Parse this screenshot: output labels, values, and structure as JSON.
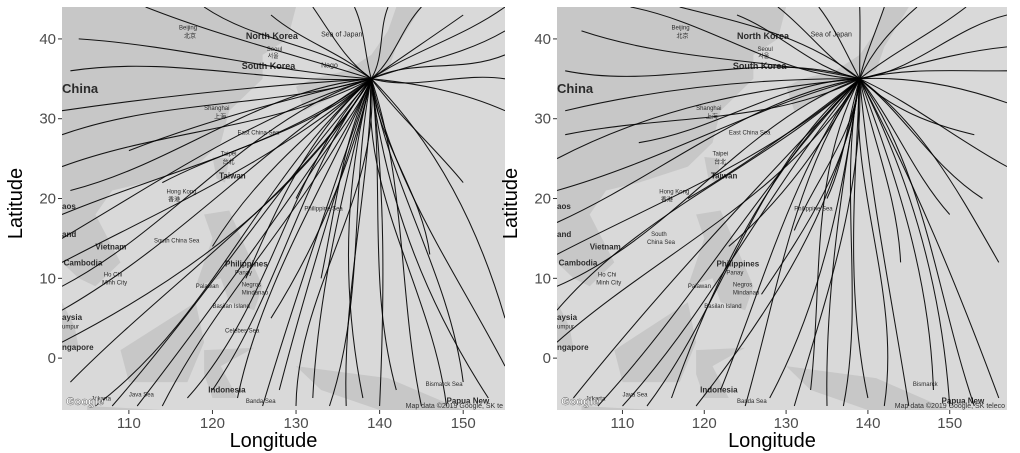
{
  "panels": [
    {
      "id": "left",
      "xlabel": "Longitude",
      "ylabel": "Latitude",
      "lon_range": [
        102,
        155
      ],
      "lat_range": [
        -6.5,
        44
      ],
      "x_ticks": [
        "110",
        "120",
        "130",
        "140",
        "150"
      ],
      "y_ticks": [
        "0",
        "10",
        "20",
        "30",
        "40"
      ],
      "origin": {
        "lon": 139,
        "lat": 35
      },
      "track_ends": [
        [
          103,
          -3
        ],
        [
          106,
          -6
        ],
        [
          108,
          -6
        ],
        [
          111,
          -6
        ],
        [
          114,
          -6
        ],
        [
          117,
          -5
        ],
        [
          120,
          -4
        ],
        [
          123,
          -5
        ],
        [
          126,
          -6
        ],
        [
          128,
          -4
        ],
        [
          130,
          -6
        ],
        [
          132,
          -5
        ],
        [
          134,
          -6
        ],
        [
          136,
          -6
        ],
        [
          138,
          -5
        ],
        [
          140,
          -6
        ],
        [
          142,
          -4
        ],
        [
          145,
          -6
        ],
        [
          148,
          -6
        ],
        [
          150,
          -3
        ],
        [
          153,
          -5
        ],
        [
          155,
          -1
        ],
        [
          102,
          2
        ],
        [
          102,
          6
        ],
        [
          102,
          9
        ],
        [
          102,
          12
        ],
        [
          102,
          15
        ],
        [
          102,
          18
        ],
        [
          103,
          21
        ],
        [
          102,
          24
        ],
        [
          102,
          28
        ],
        [
          102,
          31
        ],
        [
          103,
          36
        ],
        [
          104,
          40
        ],
        [
          110,
          26
        ],
        [
          114,
          22
        ],
        [
          120,
          14
        ],
        [
          124,
          10
        ],
        [
          127,
          5
        ],
        [
          130,
          20
        ],
        [
          133,
          10
        ],
        [
          146,
          13
        ],
        [
          150,
          22
        ],
        [
          155,
          5
        ],
        [
          112,
          44
        ],
        [
          119,
          44
        ],
        [
          127,
          43
        ],
        [
          132,
          44
        ],
        [
          137,
          44
        ],
        [
          141,
          44
        ],
        [
          145,
          44
        ],
        [
          150,
          43
        ],
        [
          155,
          44
        ],
        [
          155,
          41
        ],
        [
          155,
          38
        ],
        [
          155,
          35
        ],
        [
          155,
          31
        ]
      ],
      "place_labels": [
        {
          "text": "Beijing",
          "size": 6,
          "bold": false,
          "lon": 116,
          "lat": 41.2
        },
        {
          "text": "北京",
          "size": 6,
          "bold": false,
          "lon": 116.6,
          "lat": 40.1
        },
        {
          "text": "North Korea",
          "size": 9,
          "bold": true,
          "lon": 124,
          "lat": 40
        },
        {
          "text": "Seoul",
          "size": 6,
          "bold": false,
          "lon": 126.5,
          "lat": 38.5
        },
        {
          "text": "서울",
          "size": 6,
          "bold": false,
          "lon": 126.6,
          "lat": 37.6
        },
        {
          "text": "South Korea",
          "size": 9,
          "bold": true,
          "lon": 123.5,
          "lat": 36.2
        },
        {
          "text": "Nago",
          "size": 7,
          "bold": false,
          "lon": 133,
          "lat": 36.4
        },
        {
          "text": "Sea of Japan",
          "size": 7,
          "bold": false,
          "lon": 133,
          "lat": 40.3
        },
        {
          "text": "China",
          "size": 13,
          "bold": true,
          "lon": 102,
          "lat": 33.2
        },
        {
          "text": "Shanghai",
          "size": 6,
          "bold": false,
          "lon": 119,
          "lat": 31.1
        },
        {
          "text": "上海",
          "size": 6,
          "bold": false,
          "lon": 120.2,
          "lat": 30
        },
        {
          "text": "East China Sea",
          "size": 6,
          "bold": false,
          "lon": 123,
          "lat": 28
        },
        {
          "text": "Taipei",
          "size": 6,
          "bold": false,
          "lon": 121,
          "lat": 25.4
        },
        {
          "text": "台北",
          "size": 6,
          "bold": false,
          "lon": 121.2,
          "lat": 24.3
        },
        {
          "text": "Taiwan",
          "size": 8,
          "bold": true,
          "lon": 120.8,
          "lat": 22.5
        },
        {
          "text": "Hong Kong",
          "size": 6,
          "bold": false,
          "lon": 114.5,
          "lat": 20.6
        },
        {
          "text": "香港",
          "size": 6,
          "bold": false,
          "lon": 114.7,
          "lat": 19.6
        },
        {
          "text": "Philippine Sea",
          "size": 6,
          "bold": false,
          "lon": 131,
          "lat": 18.5
        },
        {
          "text": "aos",
          "size": 8,
          "bold": true,
          "lon": 102,
          "lat": 18.7
        },
        {
          "text": "and",
          "size": 8,
          "bold": true,
          "lon": 102,
          "lat": 15.2
        },
        {
          "text": "Vietnam",
          "size": 8,
          "bold": true,
          "lon": 106,
          "lat": 13.6
        },
        {
          "text": "South China Sea",
          "size": 6,
          "bold": false,
          "lon": 113,
          "lat": 14.5
        },
        {
          "text": "Cambodia",
          "size": 8,
          "bold": true,
          "lon": 102.2,
          "lat": 11.6
        },
        {
          "text": "Ho Chi",
          "size": 6,
          "bold": false,
          "lon": 107,
          "lat": 10.2
        },
        {
          "text": "Minh City",
          "size": 6,
          "bold": false,
          "lon": 106.8,
          "lat": 9.2
        },
        {
          "text": "Philippines",
          "size": 8,
          "bold": true,
          "lon": 121.5,
          "lat": 11.5
        },
        {
          "text": "Panay",
          "size": 6,
          "bold": false,
          "lon": 122.7,
          "lat": 10.5
        },
        {
          "text": "Palawan",
          "size": 6,
          "bold": false,
          "lon": 118,
          "lat": 8.8
        },
        {
          "text": "Negros",
          "size": 6,
          "bold": false,
          "lon": 123.5,
          "lat": 9
        },
        {
          "text": "Mindanao",
          "size": 6,
          "bold": false,
          "lon": 123.5,
          "lat": 8
        },
        {
          "text": "Basilan Island",
          "size": 6,
          "bold": false,
          "lon": 120,
          "lat": 6.3
        },
        {
          "text": "aysia",
          "size": 8,
          "bold": true,
          "lon": 102,
          "lat": 4.8
        },
        {
          "text": "umpur",
          "size": 6,
          "bold": false,
          "lon": 102,
          "lat": 3.7
        },
        {
          "text": "Celebes Sea",
          "size": 6,
          "bold": false,
          "lon": 121.5,
          "lat": 3.2
        },
        {
          "text": "ngapore",
          "size": 8,
          "bold": true,
          "lon": 102,
          "lat": 1
        },
        {
          "text": "Indonesia",
          "size": 8,
          "bold": true,
          "lon": 119.5,
          "lat": -4.3
        },
        {
          "text": "Java Sea",
          "size": 6,
          "bold": false,
          "lon": 110,
          "lat": -4.8
        },
        {
          "text": "Jakarta",
          "size": 6,
          "bold": false,
          "lon": 105.5,
          "lat": -5.3
        },
        {
          "text": "Banda Sea",
          "size": 6,
          "bold": false,
          "lon": 124,
          "lat": -5.6
        },
        {
          "text": "Bismarck Sea",
          "size": 6,
          "bold": false,
          "lon": 145.5,
          "lat": -3.5
        },
        {
          "text": "Papua New",
          "size": 8,
          "bold": true,
          "lon": 148,
          "lat": -5.7
        }
      ],
      "google_logo": "Google",
      "attribution": "Map data ©2019 Google, SK te"
    },
    {
      "id": "right",
      "xlabel": "Longitude",
      "ylabel": "Latitude",
      "lon_range": [
        102,
        157
      ],
      "lat_range": [
        -6.5,
        44
      ],
      "x_ticks": [
        "110",
        "120",
        "130",
        "140",
        "150"
      ],
      "y_ticks": [
        "0",
        "10",
        "20",
        "30",
        "40"
      ],
      "origin": {
        "lon": 139,
        "lat": 35
      },
      "track_ends": [
        [
          102,
          2
        ],
        [
          102,
          6
        ],
        [
          102,
          9
        ],
        [
          102,
          13
        ],
        [
          102,
          17
        ],
        [
          102,
          21
        ],
        [
          102,
          25
        ],
        [
          103,
          28
        ],
        [
          103,
          31
        ],
        [
          103,
          36
        ],
        [
          105,
          41
        ],
        [
          104,
          -5
        ],
        [
          107,
          -6
        ],
        [
          110,
          -6
        ],
        [
          113,
          -6
        ],
        [
          116,
          -5
        ],
        [
          119,
          -6
        ],
        [
          122,
          -4
        ],
        [
          125,
          -6
        ],
        [
          128,
          -5
        ],
        [
          131,
          -6
        ],
        [
          133,
          -4
        ],
        [
          135,
          -6
        ],
        [
          137,
          -6
        ],
        [
          140,
          -5
        ],
        [
          142,
          -6
        ],
        [
          145,
          -6
        ],
        [
          148,
          -4
        ],
        [
          150,
          -6
        ],
        [
          153,
          -6
        ],
        [
          156,
          -5
        ],
        [
          112,
          27
        ],
        [
          118,
          20
        ],
        [
          123,
          14
        ],
        [
          127,
          8
        ],
        [
          131,
          16
        ],
        [
          135,
          20
        ],
        [
          144,
          12
        ],
        [
          150,
          18
        ],
        [
          154,
          20
        ],
        [
          156,
          12
        ],
        [
          111,
          44
        ],
        [
          117,
          44
        ],
        [
          124,
          43
        ],
        [
          129,
          44
        ],
        [
          134,
          44
        ],
        [
          139,
          44
        ],
        [
          142,
          44
        ],
        [
          146,
          44
        ],
        [
          152,
          44
        ],
        [
          157,
          43
        ],
        [
          157,
          39
        ],
        [
          157,
          36
        ],
        [
          157,
          32
        ],
        [
          153,
          28
        ],
        [
          157,
          24
        ]
      ],
      "place_labels": [
        {
          "text": "Beijing",
          "size": 6,
          "bold": false,
          "lon": 116,
          "lat": 41.2
        },
        {
          "text": "北京",
          "size": 6,
          "bold": false,
          "lon": 116.6,
          "lat": 40.1
        },
        {
          "text": "North Korea",
          "size": 9,
          "bold": true,
          "lon": 124,
          "lat": 40
        },
        {
          "text": "Seoul",
          "size": 6,
          "bold": false,
          "lon": 126.5,
          "lat": 38.5
        },
        {
          "text": "서울",
          "size": 6,
          "bold": false,
          "lon": 126.6,
          "lat": 37.6
        },
        {
          "text": "South Korea",
          "size": 9,
          "bold": true,
          "lon": 123.5,
          "lat": 36.2
        },
        {
          "text": "Sea of Japan",
          "size": 7,
          "bold": false,
          "lon": 133,
          "lat": 40.3
        },
        {
          "text": "China",
          "size": 13,
          "bold": true,
          "lon": 102,
          "lat": 33.2
        },
        {
          "text": "Shanghai",
          "size": 6,
          "bold": false,
          "lon": 119,
          "lat": 31.1
        },
        {
          "text": "上海",
          "size": 6,
          "bold": false,
          "lon": 120.2,
          "lat": 30
        },
        {
          "text": "East China Sea",
          "size": 6,
          "bold": false,
          "lon": 123,
          "lat": 28
        },
        {
          "text": "Taipei",
          "size": 6,
          "bold": false,
          "lon": 121,
          "lat": 25.4
        },
        {
          "text": "台北",
          "size": 6,
          "bold": false,
          "lon": 121.2,
          "lat": 24.3
        },
        {
          "text": "Taiwan",
          "size": 8,
          "bold": true,
          "lon": 120.8,
          "lat": 22.5
        },
        {
          "text": "Hong Kong",
          "size": 6,
          "bold": false,
          "lon": 114.5,
          "lat": 20.6
        },
        {
          "text": "香港",
          "size": 6,
          "bold": false,
          "lon": 114.7,
          "lat": 19.6
        },
        {
          "text": "Philippine Sea",
          "size": 6,
          "bold": false,
          "lon": 131,
          "lat": 18.5
        },
        {
          "text": "aos",
          "size": 8,
          "bold": true,
          "lon": 102,
          "lat": 18.7
        },
        {
          "text": "and",
          "size": 8,
          "bold": true,
          "lon": 102,
          "lat": 15.2
        },
        {
          "text": "Vietnam",
          "size": 8,
          "bold": true,
          "lon": 106,
          "lat": 13.6
        },
        {
          "text": "South",
          "size": 6,
          "bold": false,
          "lon": 113.5,
          "lat": 15.3
        },
        {
          "text": "China Sea",
          "size": 6,
          "bold": false,
          "lon": 113,
          "lat": 14.3
        },
        {
          "text": "Cambodia",
          "size": 8,
          "bold": true,
          "lon": 102.2,
          "lat": 11.6
        },
        {
          "text": "Ho Chi",
          "size": 6,
          "bold": false,
          "lon": 107,
          "lat": 10.2
        },
        {
          "text": "Minh City",
          "size": 6,
          "bold": false,
          "lon": 106.8,
          "lat": 9.2
        },
        {
          "text": "Philippines",
          "size": 8,
          "bold": true,
          "lon": 121.5,
          "lat": 11.5
        },
        {
          "text": "Panay",
          "size": 6,
          "bold": false,
          "lon": 122.7,
          "lat": 10.5
        },
        {
          "text": "Palawan",
          "size": 6,
          "bold": false,
          "lon": 118,
          "lat": 8.8
        },
        {
          "text": "Negros",
          "size": 6,
          "bold": false,
          "lon": 123.5,
          "lat": 9
        },
        {
          "text": "Mindanao",
          "size": 6,
          "bold": false,
          "lon": 123.5,
          "lat": 8
        },
        {
          "text": "Basilan Island",
          "size": 6,
          "bold": false,
          "lon": 120,
          "lat": 6.3
        },
        {
          "text": "aysia",
          "size": 8,
          "bold": true,
          "lon": 102,
          "lat": 4.8
        },
        {
          "text": "umpur",
          "size": 6,
          "bold": false,
          "lon": 102,
          "lat": 3.7
        },
        {
          "text": "ngapore",
          "size": 8,
          "bold": true,
          "lon": 102,
          "lat": 1
        },
        {
          "text": "Indonesia",
          "size": 8,
          "bold": true,
          "lon": 119.5,
          "lat": -4.3
        },
        {
          "text": "Java Sea",
          "size": 6,
          "bold": false,
          "lon": 110,
          "lat": -4.8
        },
        {
          "text": "Jakarta",
          "size": 6,
          "bold": false,
          "lon": 105.5,
          "lat": -5.3
        },
        {
          "text": "Banda Sea",
          "size": 6,
          "bold": false,
          "lon": 124,
          "lat": -5.6
        },
        {
          "text": "Bismarck",
          "size": 6,
          "bold": false,
          "lon": 145.5,
          "lat": -3.5
        },
        {
          "text": "Papua New",
          "size": 8,
          "bold": true,
          "lon": 149,
          "lat": -5.7
        }
      ],
      "google_logo": "Google",
      "attribution": "Map data ©2019 Google, SK teleco"
    }
  ],
  "colors": {
    "background": "#ffffff",
    "map_sea": "#d9d9d9",
    "map_land": "#c7c7c7",
    "track": "#000000",
    "tick_text": "#4d4d4d"
  }
}
